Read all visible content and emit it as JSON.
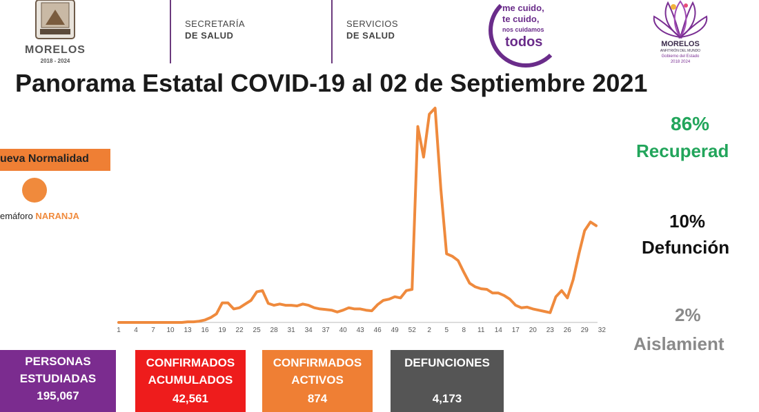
{
  "header": {
    "state_logo_name": "MORELOS",
    "state_logo_years": "2018 - 2024",
    "secretaria_line1": "SECRETARÍA",
    "secretaria_line2": "DE SALUD",
    "servicios_line1": "SERVICIOS",
    "servicios_line2": "DE SALUD",
    "campaign_line1": "me cuido,",
    "campaign_line2": "te cuido,",
    "campaign_line3": "nos cuidamos",
    "campaign_line4": "todos",
    "gov_logo_name": "MORELOS",
    "gov_logo_sub": "ANFITRIÓN DEL MUNDO",
    "gov_logo_sub2": "Gobierno del Estado",
    "gov_logo_years": "2018 2024"
  },
  "title": "Panorama Estatal COVID-19 al 02 de Septiembre 2021",
  "sidebar_left": {
    "badge": "ueva Normalidad",
    "semaforo_label": "emáforo ",
    "semaforo_value": "NARANJA",
    "semaforo_color": "#f08a3c"
  },
  "stats_right": [
    {
      "pct": "86%",
      "label": "Recuperad",
      "color": "#22a55b"
    },
    {
      "pct": "10%",
      "label": "Defunción",
      "color": "#111111"
    },
    {
      "pct": "2%",
      "label": "Aislamient",
      "color": "#8a8a8a"
    }
  ],
  "boxes": [
    {
      "line1": "PERSONAS",
      "line2": "ESTUDIADAS",
      "value": "195,067",
      "color": "#7b2c8f"
    },
    {
      "line1": "CONFIRMADOS",
      "line2": "ACUMULADOS",
      "value": "42,561",
      "color": "#ee1c1c"
    },
    {
      "line1": "CONFIRMADOS",
      "line2": "ACTIVOS",
      "value": "874",
      "color": "#ef7f34"
    },
    {
      "line1": "DEFUNCIONES",
      "line2": "",
      "value": "4,173",
      "color": "#555555"
    }
  ],
  "chart_data": {
    "type": "line",
    "color": "#ef8a3d",
    "tick_labels": [
      "1",
      "4",
      "7",
      "10",
      "13",
      "16",
      "19",
      "22",
      "25",
      "28",
      "31",
      "34",
      "37",
      "40",
      "43",
      "46",
      "49",
      "52",
      "2",
      "5",
      "8",
      "11",
      "14",
      "17",
      "20",
      "23",
      "26",
      "29",
      "32"
    ],
    "values": [
      0,
      0,
      0,
      0,
      0,
      0,
      0,
      0,
      0,
      0,
      0,
      0,
      1,
      1,
      2,
      4,
      8,
      14,
      32,
      32,
      22,
      24,
      30,
      36,
      50,
      52,
      31,
      28,
      30,
      28,
      28,
      27,
      30,
      28,
      24,
      22,
      21,
      20,
      17,
      20,
      24,
      22,
      22,
      20,
      19,
      29,
      36,
      38,
      42,
      40,
      52,
      54,
      320,
      270,
      340,
      350,
      218,
      112,
      108,
      101,
      82,
      64,
      58,
      55,
      54,
      48,
      48,
      44,
      38,
      28,
      24,
      25,
      22,
      20,
      18,
      16,
      42,
      52,
      40,
      70,
      112,
      150,
      164,
      158
    ],
    "ylim": [
      0,
      360
    ]
  }
}
